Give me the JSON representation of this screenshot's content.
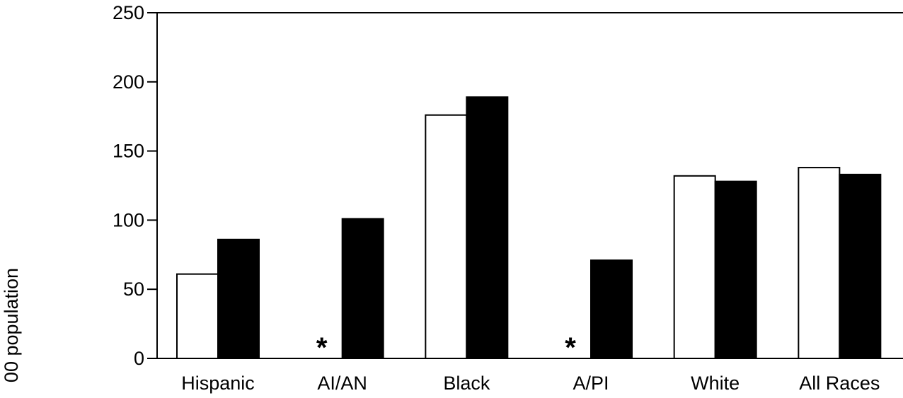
{
  "chart_data": {
    "type": "bar",
    "title": "",
    "xlabel": "",
    "ylabel": "00 population",
    "ylim": [
      0,
      250
    ],
    "yticks": [
      0,
      50,
      100,
      150,
      200,
      250
    ],
    "categories": [
      "Hispanic",
      "AI/AN",
      "Black",
      "A/PI",
      "White",
      "All Races"
    ],
    "series": [
      {
        "values": [
          61,
          null,
          176,
          null,
          132,
          138
        ],
        "color": "#ffffff"
      },
      {
        "values": [
          86,
          101,
          189,
          71,
          128,
          133
        ],
        "color": "#000000"
      }
    ],
    "missing_marker": "*",
    "grid": false,
    "legend": "none"
  }
}
